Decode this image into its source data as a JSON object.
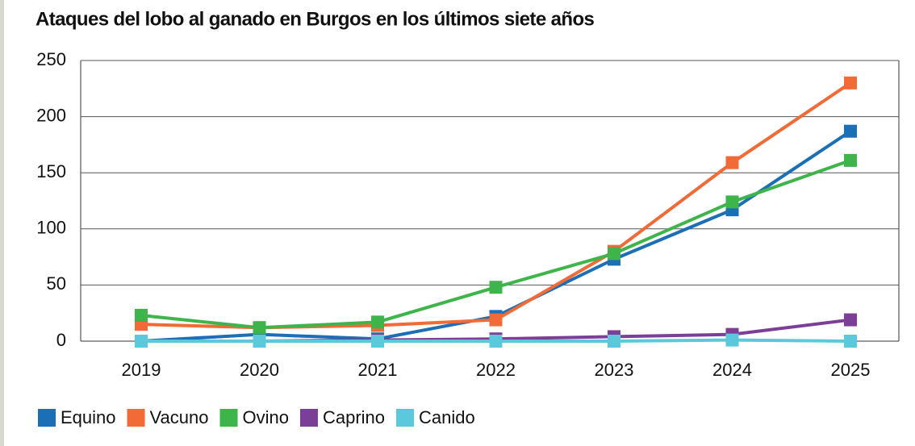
{
  "chart_data": {
    "type": "line",
    "title": "Ataques del lobo al ganado en Burgos en los últimos siete años",
    "categories": [
      "2019",
      "2020",
      "2021",
      "2022",
      "2023",
      "2024",
      "2025"
    ],
    "series": [
      {
        "name": "Equino",
        "color": "#1b6fb6",
        "values": [
          0,
          6,
          2,
          22,
          73,
          117,
          187
        ]
      },
      {
        "name": "Vacuno",
        "color": "#f26a35",
        "values": [
          15,
          12,
          14,
          19,
          80,
          159,
          230
        ]
      },
      {
        "name": "Ovino",
        "color": "#3db54a",
        "values": [
          23,
          12,
          17,
          48,
          78,
          124,
          161
        ]
      },
      {
        "name": "Caprino",
        "color": "#7b3f98",
        "values": [
          0,
          0,
          1,
          2,
          4,
          6,
          19
        ]
      },
      {
        "name": "Canido",
        "color": "#5bc8db",
        "values": [
          0,
          0,
          0,
          0,
          0,
          1,
          0
        ]
      }
    ],
    "ylim": [
      0,
      250
    ],
    "yticks": [
      0,
      50,
      100,
      150,
      200,
      250
    ],
    "grid": true
  }
}
